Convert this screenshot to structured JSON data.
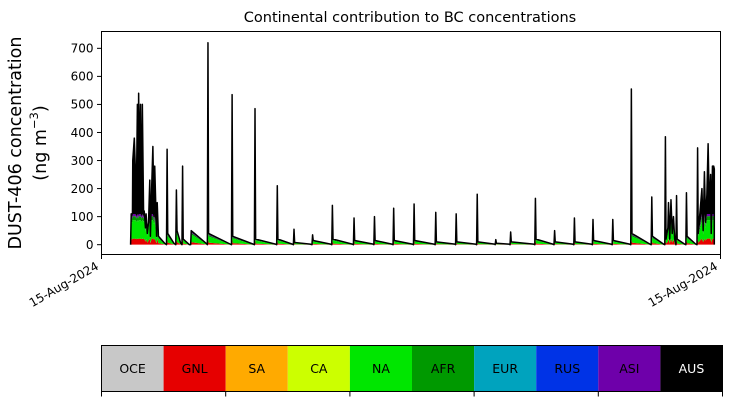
{
  "chart_data": {
    "type": "area",
    "title": "Continental contribution to BC concentrations",
    "ylabel_line1": "DUST-406 concentration",
    "ylabel_line2_pre": "(ng m",
    "ylabel_line2_sup": "−3",
    "ylabel_line2_post": ")",
    "xlabel": "",
    "x_tick_labels": [
      "15-Aug-2024",
      "15-Aug-2024"
    ],
    "y_ticks": [
      0,
      100,
      200,
      300,
      400,
      500,
      600,
      700
    ],
    "ylim": [
      -35,
      760
    ],
    "xlim": [
      0,
      100
    ],
    "grid": false,
    "legend": "bottom color bar",
    "categories": [
      "OCE",
      "GNL",
      "SA",
      "CA",
      "NA",
      "AFR",
      "EUR",
      "RUS",
      "ASI",
      "AUS"
    ],
    "colors": {
      "OCE": "#c8c8c8",
      "GNL": "#e60000",
      "SA": "#ffaa00",
      "CA": "#ccff00",
      "NA": "#00e600",
      "AFR": "#009900",
      "EUR": "#00a3be",
      "RUS": "#0033e6",
      "ASI": "#6e00aa",
      "AUS": "#000000"
    },
    "bar_text_colors": {
      "OCE": "#000000",
      "GNL": "#000000",
      "SA": "#000000",
      "CA": "#000000",
      "NA": "#000000",
      "AFR": "#000000",
      "EUR": "#000000",
      "RUS": "#000000",
      "ASI": "#000000",
      "AUS": "#ffffff"
    },
    "envelope": [
      [
        4.7,
        0
      ],
      [
        4.8,
        110
      ],
      [
        5.0,
        110
      ],
      [
        5.05,
        300
      ],
      [
        5.3,
        380
      ],
      [
        5.5,
        250
      ],
      [
        5.6,
        110
      ],
      [
        5.8,
        500
      ],
      [
        5.9,
        110
      ],
      [
        6.0,
        540
      ],
      [
        6.1,
        300
      ],
      [
        6.3,
        500
      ],
      [
        6.5,
        110
      ],
      [
        6.6,
        500
      ],
      [
        6.8,
        110
      ],
      [
        6.9,
        120
      ],
      [
        7.1,
        60
      ],
      [
        7.2,
        110
      ],
      [
        7.4,
        40
      ],
      [
        7.6,
        80
      ],
      [
        7.8,
        230
      ],
      [
        7.9,
        30
      ],
      [
        8.1,
        200
      ],
      [
        8.3,
        350
      ],
      [
        8.5,
        100
      ],
      [
        8.6,
        280
      ],
      [
        8.9,
        30
      ],
      [
        9.0,
        150
      ],
      [
        9.2,
        30
      ],
      [
        10.2,
        5
      ],
      [
        10.5,
        0
      ],
      [
        10.6,
        340
      ],
      [
        10.7,
        40
      ],
      [
        11.7,
        5
      ],
      [
        12.0,
        0
      ],
      [
        12.1,
        195
      ],
      [
        12.2,
        50
      ],
      [
        12.8,
        5
      ],
      [
        13.0,
        0
      ],
      [
        13.1,
        280
      ],
      [
        13.2,
        20
      ],
      [
        14.2,
        0
      ],
      [
        14.4,
        0
      ],
      [
        14.5,
        50
      ],
      [
        16.9,
        5
      ],
      [
        17.1,
        0
      ],
      [
        17.2,
        720
      ],
      [
        17.3,
        40
      ],
      [
        20.8,
        2
      ],
      [
        21.0,
        0
      ],
      [
        21.1,
        535
      ],
      [
        21.2,
        30
      ],
      [
        24.5,
        2
      ],
      [
        24.7,
        0
      ],
      [
        24.8,
        485
      ],
      [
        24.9,
        20
      ],
      [
        28.1,
        2
      ],
      [
        28.3,
        0
      ],
      [
        28.4,
        210
      ],
      [
        28.5,
        20
      ],
      [
        30.8,
        2
      ],
      [
        31.0,
        0
      ],
      [
        31.1,
        55
      ],
      [
        31.2,
        8
      ],
      [
        33.7,
        2
      ],
      [
        34.0,
        0
      ],
      [
        34.1,
        35
      ],
      [
        34.2,
        15
      ],
      [
        37.0,
        2
      ],
      [
        37.2,
        0
      ],
      [
        37.3,
        140
      ],
      [
        37.4,
        20
      ],
      [
        40.5,
        2
      ],
      [
        40.7,
        0
      ],
      [
        40.8,
        95
      ],
      [
        40.9,
        15
      ],
      [
        43.9,
        2
      ],
      [
        44.0,
        0
      ],
      [
        44.1,
        100
      ],
      [
        44.2,
        15
      ],
      [
        46.9,
        2
      ],
      [
        47.1,
        0
      ],
      [
        47.2,
        130
      ],
      [
        47.3,
        15
      ],
      [
        50.2,
        2
      ],
      [
        50.4,
        0
      ],
      [
        50.5,
        145
      ],
      [
        50.6,
        15
      ],
      [
        53.7,
        2
      ],
      [
        53.9,
        0
      ],
      [
        54.0,
        115
      ],
      [
        54.1,
        10
      ],
      [
        57.1,
        2
      ],
      [
        57.2,
        0
      ],
      [
        57.3,
        110
      ],
      [
        57.4,
        10
      ],
      [
        60.4,
        2
      ],
      [
        60.6,
        0
      ],
      [
        60.7,
        180
      ],
      [
        60.8,
        10
      ],
      [
        63.5,
        2
      ],
      [
        63.6,
        0
      ],
      [
        63.7,
        18
      ],
      [
        63.8,
        5
      ],
      [
        65.8,
        2
      ],
      [
        66.0,
        0
      ],
      [
        66.1,
        45
      ],
      [
        66.2,
        10
      ],
      [
        69.8,
        2
      ],
      [
        70.0,
        0
      ],
      [
        70.1,
        165
      ],
      [
        70.2,
        20
      ],
      [
        72.9,
        2
      ],
      [
        73.1,
        0
      ],
      [
        73.2,
        50
      ],
      [
        73.3,
        10
      ],
      [
        76.1,
        2
      ],
      [
        76.3,
        0
      ],
      [
        76.4,
        95
      ],
      [
        76.5,
        10
      ],
      [
        79.1,
        2
      ],
      [
        79.3,
        0
      ],
      [
        79.4,
        90
      ],
      [
        79.5,
        15
      ],
      [
        82.3,
        2
      ],
      [
        82.5,
        0
      ],
      [
        82.6,
        90
      ],
      [
        82.7,
        15
      ],
      [
        85.3,
        2
      ],
      [
        85.5,
        0
      ],
      [
        85.6,
        555
      ],
      [
        85.7,
        40
      ],
      [
        88.6,
        2
      ],
      [
        88.8,
        0
      ],
      [
        88.9,
        170
      ],
      [
        89.0,
        30
      ],
      [
        90.8,
        2
      ],
      [
        91.0,
        0
      ],
      [
        91.1,
        385
      ],
      [
        91.2,
        20
      ],
      [
        91.5,
        60
      ],
      [
        91.6,
        150
      ],
      [
        91.8,
        20
      ],
      [
        92.0,
        160
      ],
      [
        92.2,
        40
      ],
      [
        92.4,
        100
      ],
      [
        92.6,
        20
      ],
      [
        92.7,
        10
      ],
      [
        92.8,
        0
      ],
      [
        92.9,
        175
      ],
      [
        93.0,
        20
      ],
      [
        94.2,
        2
      ],
      [
        94.4,
        0
      ],
      [
        94.5,
        185
      ],
      [
        94.6,
        30
      ],
      [
        96.0,
        2
      ],
      [
        96.2,
        0
      ],
      [
        96.3,
        345
      ],
      [
        96.4,
        40
      ],
      [
        97.0,
        200
      ],
      [
        97.2,
        50
      ],
      [
        97.4,
        260
      ],
      [
        97.6,
        80
      ],
      [
        97.8,
        180
      ],
      [
        98.0,
        360
      ],
      [
        98.2,
        120
      ],
      [
        98.4,
        250
      ],
      [
        98.5,
        40
      ],
      [
        98.7,
        280
      ],
      [
        98.9,
        280
      ],
      [
        99.0,
        270
      ],
      [
        99.0,
        0
      ]
    ]
  }
}
